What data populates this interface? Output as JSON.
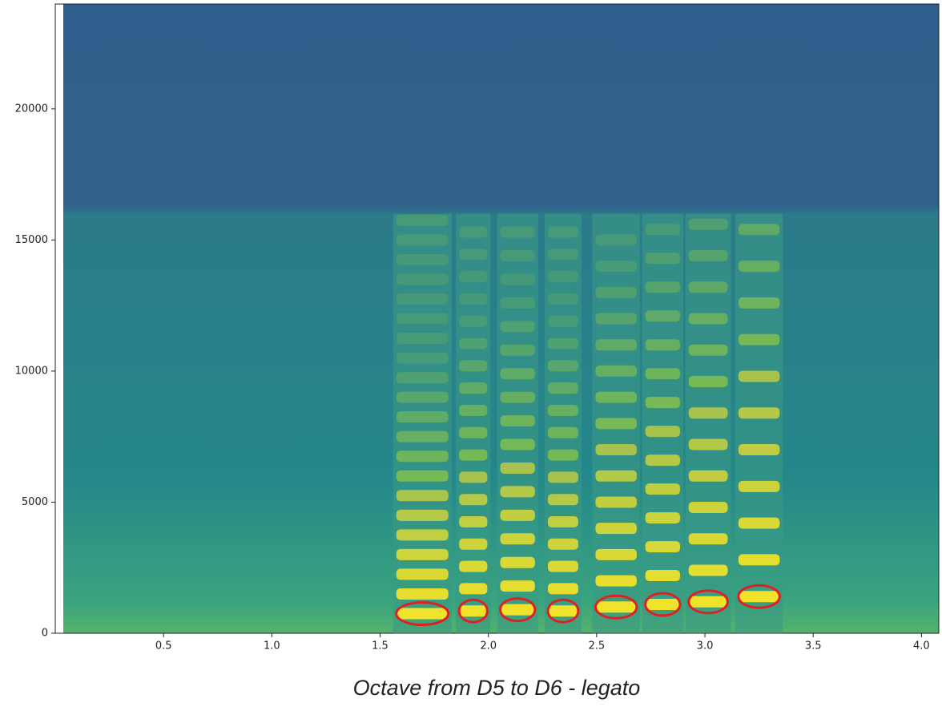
{
  "chart_data": {
    "type": "spectrogram",
    "title": "Octave from D5 to D6 - legato",
    "xlim": [
      0,
      4.08
    ],
    "ylim": [
      0,
      24000
    ],
    "xticks": [
      0.5,
      {
        "value": 1.0,
        "label": "1.0"
      },
      1.5,
      {
        "value": 2.0,
        "label": "2.0"
      },
      2.5,
      {
        "value": 3.0,
        "label": "3.0"
      },
      3.5,
      {
        "value": 4.0,
        "label": "4.0"
      }
    ],
    "yticks": [
      0,
      5000,
      10000,
      15000,
      20000
    ],
    "notes": [
      {
        "start": 1.56,
        "end": 1.83,
        "f0": 750
      },
      {
        "start": 1.85,
        "end": 2.01,
        "f0": 850
      },
      {
        "start": 2.04,
        "end": 2.23,
        "f0": 900
      },
      {
        "start": 2.26,
        "end": 2.43,
        "f0": 850
      },
      {
        "start": 2.48,
        "end": 2.7,
        "f0": 1000
      },
      {
        "start": 2.71,
        "end": 2.9,
        "f0": 1100
      },
      {
        "start": 2.91,
        "end": 3.12,
        "f0": 1200
      },
      {
        "start": 3.14,
        "end": 3.36,
        "f0": 1400
      }
    ],
    "color": "#fde725",
    "annotation_color": "#e02020"
  }
}
